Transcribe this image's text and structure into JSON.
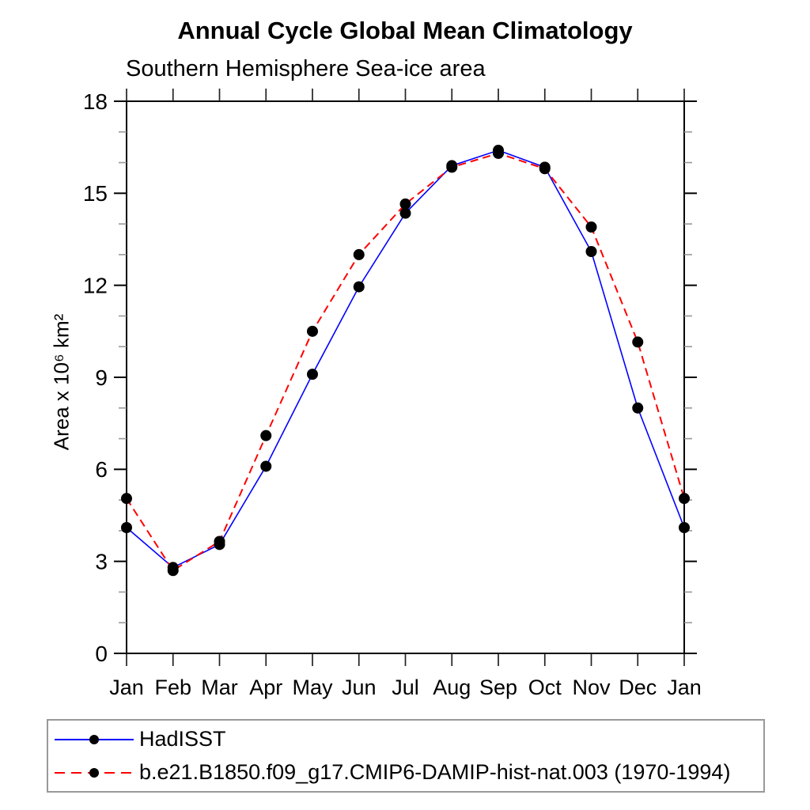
{
  "chart_data": {
    "type": "line",
    "title": "Annual Cycle Global Mean Climatology",
    "subtitle": "Southern Hemisphere Sea-ice area",
    "ylabel": "Area x 10⁶ km²",
    "xlabel": "",
    "categories": [
      "Jan",
      "Feb",
      "Mar",
      "Apr",
      "May",
      "Jun",
      "Jul",
      "Aug",
      "Sep",
      "Oct",
      "Nov",
      "Dec",
      "Jan"
    ],
    "ylim": [
      0,
      18
    ],
    "yticks_major": [
      0,
      3,
      6,
      9,
      12,
      15,
      18
    ],
    "ytick_minor_interval": 1,
    "grid": false,
    "legend_position": "bottom",
    "axis_color": "#000000",
    "minor_tick_color": "#999999",
    "marker": {
      "shape": "circle",
      "color": "#000000",
      "radius": 7
    },
    "series": [
      {
        "name": "HadISST",
        "color": "#0000ff",
        "line_style": "solid",
        "values": [
          4.1,
          2.8,
          3.55,
          6.1,
          9.1,
          11.95,
          14.35,
          15.9,
          16.4,
          15.85,
          13.1,
          8.0,
          4.1
        ]
      },
      {
        "name": "b.e21.B1850.f09_g17.CMIP6-DAMIP-hist-nat.003 (1970-1994)",
        "color": "#ff0000",
        "line_style": "dashed",
        "values": [
          5.05,
          2.7,
          3.65,
          7.1,
          10.5,
          13.0,
          14.65,
          15.85,
          16.3,
          15.8,
          13.9,
          10.15,
          5.05
        ]
      }
    ]
  }
}
